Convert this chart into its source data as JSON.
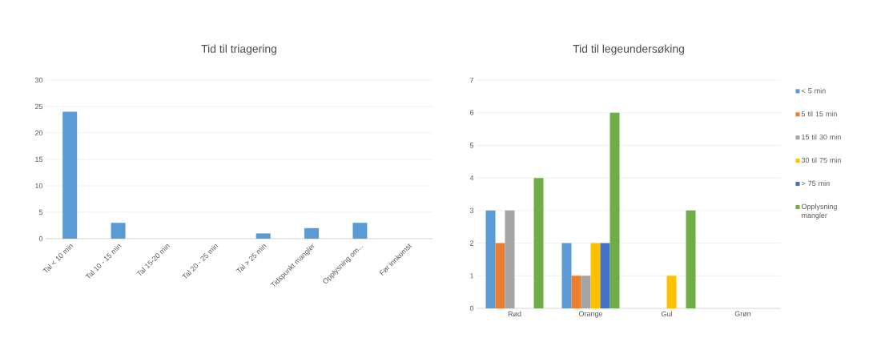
{
  "chart_data": [
    {
      "type": "bar",
      "title": "Tid til triagering",
      "categories": [
        "Tal < 10 min",
        "Tal 10 - 15 min",
        "Tal 15-20 min",
        "Tal 20 - 25 min",
        "Tal > 25 min",
        "Tidspunkt mangler",
        "Opplysning om...",
        "Før innkomst"
      ],
      "values": [
        24,
        3,
        0,
        0,
        1,
        2,
        3,
        0
      ],
      "color": "#5b9bd5",
      "ylim": [
        0,
        30
      ],
      "yticks": [
        0,
        5,
        10,
        15,
        20,
        25,
        30
      ],
      "grid": "y",
      "legend": false
    },
    {
      "type": "bar",
      "title": "Tid til legeundersøking",
      "categories": [
        "Rød",
        "Orange",
        "Gul",
        "Grøn"
      ],
      "series": [
        {
          "name": "< 5 min",
          "color": "#5b9bd5",
          "values": [
            3,
            2,
            0,
            0
          ]
        },
        {
          "name": "5 til 15 min",
          "color": "#ed7d31",
          "values": [
            2,
            1,
            0,
            0
          ]
        },
        {
          "name": "15 til 30 min",
          "color": "#a5a5a5",
          "values": [
            3,
            1,
            0,
            0
          ]
        },
        {
          "name": "30 til 75 min",
          "color": "#ffc000",
          "values": [
            0,
            2,
            1,
            0
          ]
        },
        {
          "name": "> 75 min",
          "color": "#4472c4",
          "values": [
            0,
            2,
            0,
            0
          ]
        },
        {
          "name": "Opplysning mangler",
          "color": "#70ad47",
          "values": [
            4,
            6,
            3,
            0
          ]
        }
      ],
      "ylim": [
        0,
        7
      ],
      "yticks": [
        0,
        1,
        2,
        3,
        4,
        5,
        6,
        7
      ],
      "grid": "y",
      "legend": "right"
    }
  ]
}
